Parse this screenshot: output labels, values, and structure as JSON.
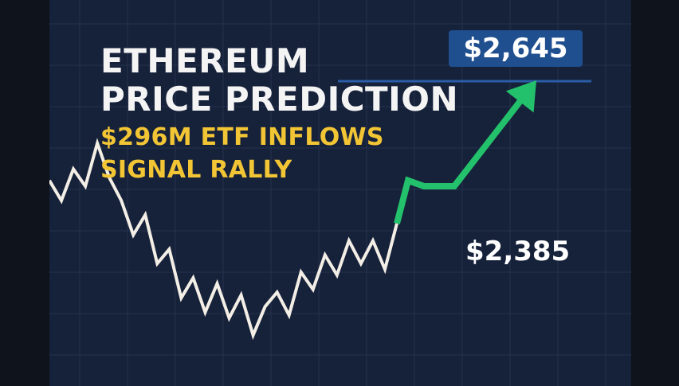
{
  "title_line1": "ETHEREUM",
  "title_line2": "PRICE PREDICTION",
  "subtitle_line1": "$296M ETF INFLOWS",
  "subtitle_line2": "SIGNAL RALLY",
  "target_price_label": "$2,645",
  "current_price_label": "$2,385",
  "colors": {
    "background": "#16213a",
    "grid": "#26334d",
    "price_line": "#f3efe6",
    "forecast_arrow": "#23c16b",
    "title_text": "#f4f4f4",
    "subtitle_text": "#f2c535",
    "badge_bg": "#1f4f8f",
    "target_line": "#2b5ea8"
  },
  "chart_data": {
    "type": "line",
    "series": [
      {
        "values": [
          0.62,
          0.55,
          0.66,
          0.6,
          0.75,
          0.63,
          0.55,
          0.43,
          0.5,
          0.33,
          0.38,
          0.21,
          0.28,
          0.16,
          0.26,
          0.14,
          0.22,
          0.08,
          0.18,
          0.23,
          0.15,
          0.3,
          0.24,
          0.36,
          0.29,
          0.41,
          0.33,
          0.41,
          0.31,
          0.47
        ]
      },
      {
        "values": [
          0.47,
          0.62,
          0.6,
          0.6,
          0.93
        ]
      }
    ],
    "annotations": [
      "$2,385",
      "$2,645"
    ],
    "grid": true
  }
}
